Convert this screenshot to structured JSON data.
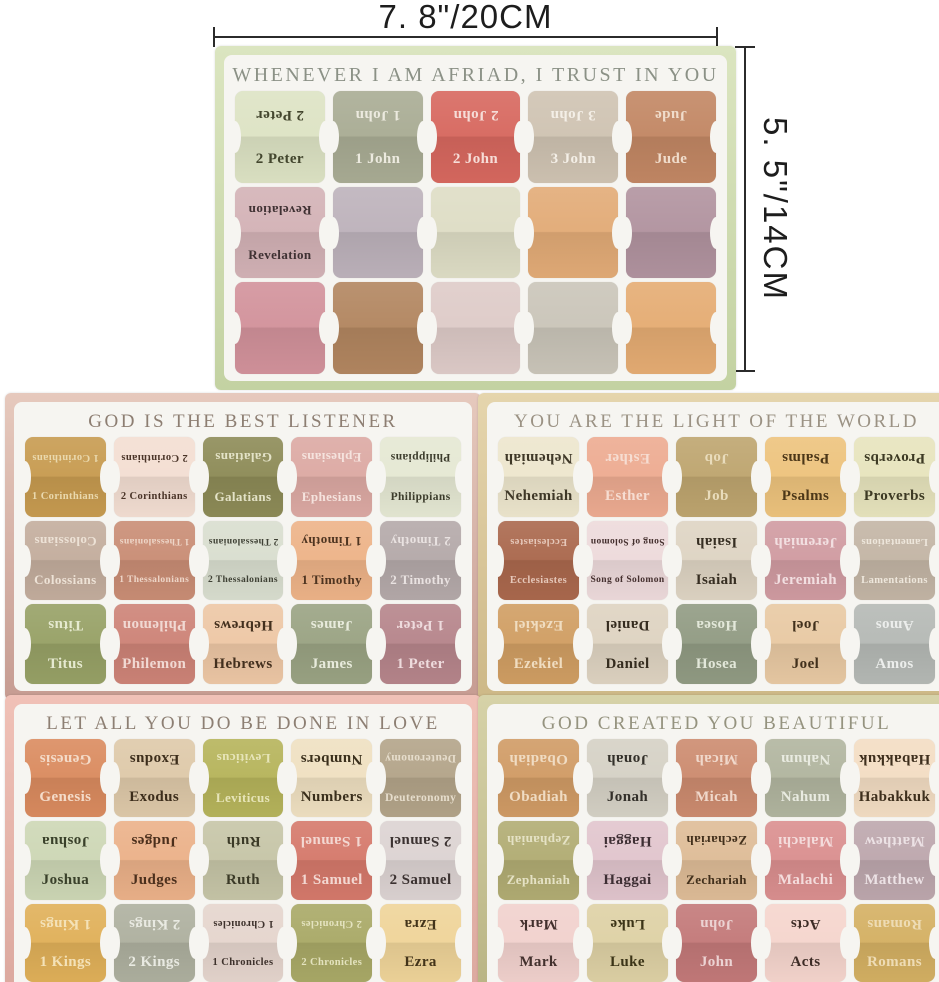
{
  "dimensions": {
    "width_label": "7. 8\"/20CM",
    "height_label": "5. 5\"/14CM"
  },
  "sheets": [
    {
      "id": "top",
      "title": "WHENEVER I AM AFRIAD, I TRUST IN YOU",
      "title_color": "#8b9186",
      "border_top": "#dbe5c0",
      "border_bottom": "#c3d2a2",
      "rows": [
        [
          {
            "label": "2 Peter",
            "bg": "#dde3c4",
            "fg": "#43462e"
          },
          {
            "label": "1 John",
            "bg": "#a9ac94",
            "fg": "#eceadf"
          },
          {
            "label": "2 John",
            "bg": "#d7685f",
            "fg": "#f6ddd8"
          },
          {
            "label": "3 John",
            "bg": "#cfc3b2",
            "fg": "#f4efe7"
          },
          {
            "label": "Jude",
            "bg": "#c28764",
            "fg": "#f0ddcc"
          }
        ],
        [
          {
            "label": "Revelation",
            "bg": "#d3b2b6",
            "fg": "#3f3133"
          },
          {
            "label": "",
            "bg": "#bdb2bb"
          },
          {
            "label": "",
            "bg": "#deddc5"
          },
          {
            "label": "",
            "bg": "#e2ab77"
          },
          {
            "label": "",
            "bg": "#b1939f"
          }
        ],
        [
          {
            "label": "",
            "bg": "#d2929b"
          },
          {
            "label": "",
            "bg": "#b28660"
          },
          {
            "label": "",
            "bg": "#decbc8"
          },
          {
            "label": "",
            "bg": "#cac5b9"
          },
          {
            "label": "",
            "bg": "#e5ac73"
          }
        ]
      ]
    },
    {
      "id": "mid-left",
      "title": "GOD IS THE BEST LISTENER",
      "title_color": "#8d7e72",
      "border_top": "#e6c9bd",
      "border_bottom": "#c69c92",
      "rows": [
        [
          {
            "label": "1 Corinthians",
            "bg": "#c79b50",
            "fg": "#ead9ae"
          },
          {
            "label": "2 Corinthians",
            "bg": "#f3ded2",
            "fg": "#4a3428"
          },
          {
            "label": "Galatians",
            "bg": "#8d8b57",
            "fg": "#e4e3c8"
          },
          {
            "label": "Ephesians",
            "bg": "#dca9a3",
            "fg": "#f5e3de"
          },
          {
            "label": "Philippians",
            "bg": "#e5e8d3",
            "fg": "#3c3c2c"
          }
        ],
        [
          {
            "label": "Colossians",
            "bg": "#c3ad9d",
            "fg": "#ede2d6"
          },
          {
            "label": "1 Thessalonians",
            "bg": "#c98d75",
            "fg": "#eed6c8"
          },
          {
            "label": "2 Thessalonians",
            "bg": "#d9decf",
            "fg": "#3e4034"
          },
          {
            "label": "1 Timothy",
            "bg": "#edb388",
            "fg": "#4e3420"
          },
          {
            "label": "2 Timothy",
            "bg": "#b4a9a9",
            "fg": "#e9e2e1"
          }
        ],
        [
          {
            "label": "Titus",
            "bg": "#97a166",
            "fg": "#e6ead0"
          },
          {
            "label": "Philemon",
            "bg": "#cd8377",
            "fg": "#f1d9d3"
          },
          {
            "label": "Hebrews",
            "bg": "#edc7a5",
            "fg": "#43301e"
          },
          {
            "label": "James",
            "bg": "#9aa383",
            "fg": "#e8ebdc"
          },
          {
            "label": "1 Peter",
            "bg": "#b6858b",
            "fg": "#eedbdd"
          }
        ]
      ]
    },
    {
      "id": "mid-right",
      "title": "YOU ARE THE LIGHT OF THE WORLD",
      "title_color": "#9b9284",
      "border_top": "#e5d5ad",
      "border_bottom": "#cdb887",
      "rows": [
        [
          {
            "label": "Nehemiah",
            "bg": "#ede6cd",
            "fg": "#3f3828"
          },
          {
            "label": "Esther",
            "bg": "#edab91",
            "fg": "#f6ddd2"
          },
          {
            "label": "Job",
            "bg": "#bea56f",
            "fg": "#e9dcbc"
          },
          {
            "label": "Psalms",
            "bg": "#edc37d",
            "fg": "#4c3718"
          },
          {
            "label": "Proverbs",
            "bg": "#e7e4bd",
            "fg": "#3d3a24"
          }
        ],
        [
          {
            "label": "Ecclesiastes",
            "bg": "#aa684d",
            "fg": "#e6c8ba"
          },
          {
            "label": "Song of Solomon",
            "bg": "#eddadb",
            "fg": "#45302f"
          },
          {
            "label": "Isaiah",
            "bg": "#ded4c3",
            "fg": "#362e22"
          },
          {
            "label": "Jeremiah",
            "bg": "#d09ba1",
            "fg": "#f2dfe1"
          },
          {
            "label": "Lamentations",
            "bg": "#c3b5a5",
            "fg": "#eee7dc"
          }
        ],
        [
          {
            "label": "Ezekiel",
            "bg": "#d09e63",
            "fg": "#f0ddc1"
          },
          {
            "label": "Daniel",
            "bg": "#ded3c1",
            "fg": "#352c1f"
          },
          {
            "label": "Hosea",
            "bg": "#919b83",
            "fg": "#e3e8da"
          },
          {
            "label": "Joel",
            "bg": "#e8c9a3",
            "fg": "#41301c"
          },
          {
            "label": "Amos",
            "bg": "#b5b9b5",
            "fg": "#eceeec"
          }
        ]
      ]
    },
    {
      "id": "bottom-left",
      "title": "LET ALL YOU DO BE DONE IN LOVE",
      "title_color": "#8d7f73",
      "border_top": "#f0c1b7",
      "border_bottom": "#dba89e",
      "rows": [
        [
          {
            "label": "Genesis",
            "bg": "#da8b5f",
            "fg": "#f4dcca"
          },
          {
            "label": "Exodus",
            "bg": "#dec9a9",
            "fg": "#3c2d1b"
          },
          {
            "label": "Leviticus",
            "bg": "#b6b45b",
            "fg": "#e7e5b9"
          },
          {
            "label": "Numbers",
            "bg": "#efe0c1",
            "fg": "#3a2f1c"
          },
          {
            "label": "Deuteronomy",
            "bg": "#b3a489",
            "fg": "#e6ddcc"
          }
        ],
        [
          {
            "label": "Joshua",
            "bg": "#cdd7b5",
            "fg": "#39402a"
          },
          {
            "label": "Judges",
            "bg": "#ebb189",
            "fg": "#4b2f1c"
          },
          {
            "label": "Ruth",
            "bg": "#c6c5a7",
            "fg": "#3b3a27"
          },
          {
            "label": "1 Samuel",
            "bg": "#d5796b",
            "fg": "#f3d8d2"
          },
          {
            "label": "2 Samuel",
            "bg": "#dcd3d2",
            "fg": "#3b3231"
          }
        ],
        [
          {
            "label": "1 Kings",
            "bg": "#e0b059",
            "fg": "#f4e2b8"
          },
          {
            "label": "2 Kings",
            "bg": "#aeb09f",
            "fg": "#e9eae2"
          },
          {
            "label": "1 Chronicles",
            "bg": "#e5d5cd",
            "fg": "#3e322c"
          },
          {
            "label": "2 Chronicles",
            "bg": "#a9a967",
            "fg": "#e4e3bf"
          },
          {
            "label": "Ezra",
            "bg": "#efd499",
            "fg": "#43341a"
          }
        ]
      ]
    },
    {
      "id": "bottom-right",
      "title": "GOD CREATED YOU BEAUTIFUL",
      "title_color": "#95937f",
      "border_top": "#d6d2a8",
      "border_bottom": "#b8b383",
      "rows": [
        [
          {
            "label": "Obadiah",
            "bg": "#d09b65",
            "fg": "#f0dcc3"
          },
          {
            "label": "Jonah",
            "bg": "#d5d1c5",
            "fg": "#33302a"
          },
          {
            "label": "Micah",
            "bg": "#cc8b6f",
            "fg": "#f0d8cb"
          },
          {
            "label": "Nahum",
            "bg": "#b1b59f",
            "fg": "#e9ebe1"
          },
          {
            "label": "Habakkuk",
            "bg": "#f3ddc3",
            "fg": "#3e2f1d"
          }
        ],
        [
          {
            "label": "Zephaniah",
            "bg": "#b1ac73",
            "fg": "#e5e2c5"
          },
          {
            "label": "Haggai",
            "bg": "#e1c5cd",
            "fg": "#3e2f34"
          },
          {
            "label": "Zechariah",
            "bg": "#debc97",
            "fg": "#42301c"
          },
          {
            "label": "Malachi",
            "bg": "#da8f8f",
            "fg": "#f4dcdc"
          },
          {
            "label": "Matthew",
            "bg": "#bda7ad",
            "fg": "#ece2e5"
          }
        ],
        [
          {
            "label": "Mark",
            "bg": "#f1d1cd",
            "fg": "#42302d"
          },
          {
            "label": "Luke",
            "bg": "#ded1a5",
            "fg": "#3b3417"
          },
          {
            "label": "John",
            "bg": "#c37979",
            "fg": "#ecd3d3"
          },
          {
            "label": "Acts",
            "bg": "#f5d5cd",
            "fg": "#3d2c26"
          },
          {
            "label": "Romans",
            "bg": "#d4b063",
            "fg": "#eedcb5"
          }
        ]
      ]
    }
  ]
}
